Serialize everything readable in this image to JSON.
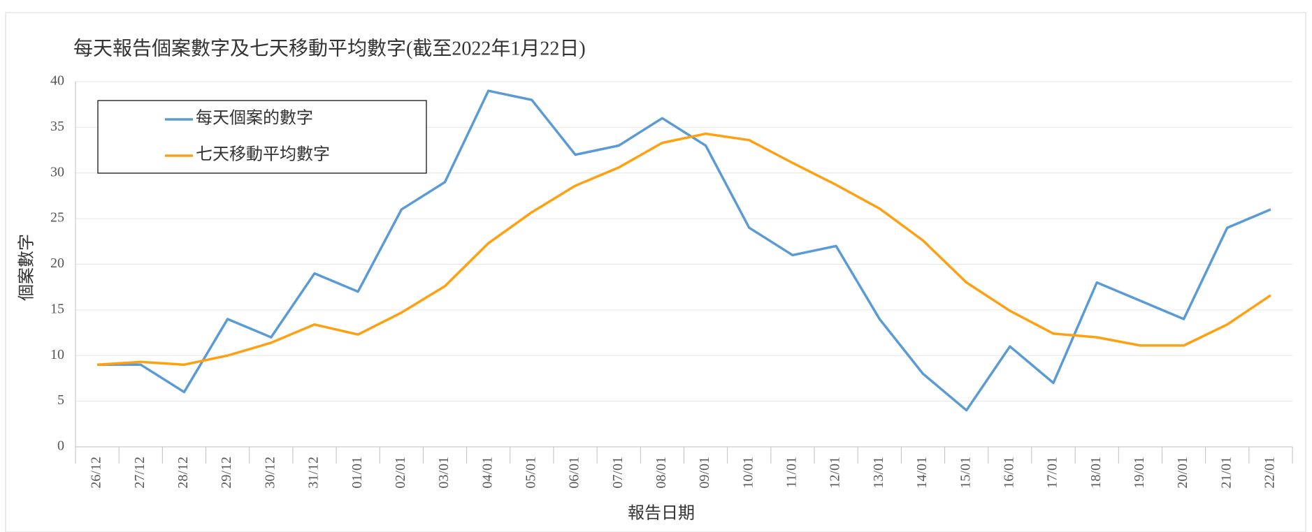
{
  "chart_data": {
    "type": "line",
    "title": "每天報告個案數字及七天移動平均數字(截至2022年1月22日)",
    "x_label": "報告日期",
    "y_label": "個案數字",
    "categories": [
      "26/12",
      "27/12",
      "28/12",
      "29/12",
      "30/12",
      "31/12",
      "01/01",
      "02/01",
      "03/01",
      "04/01",
      "05/01",
      "06/01",
      "07/01",
      "08/01",
      "09/01",
      "10/01",
      "11/01",
      "12/01",
      "13/01",
      "14/01",
      "15/01",
      "16/01",
      "17/01",
      "18/01",
      "19/01",
      "20/01",
      "21/01",
      "22/01"
    ],
    "series": [
      {
        "name": "每天個案的數字",
        "color": "#5b9bd5",
        "values": [
          9,
          9,
          6,
          14,
          12,
          19,
          17,
          26,
          29,
          39,
          38,
          32,
          33,
          36,
          33,
          24,
          21,
          22,
          14,
          8,
          4,
          11,
          7,
          18,
          16,
          14,
          24,
          26
        ]
      },
      {
        "name": "七天移動平均數字",
        "color": "#ffa010",
        "values": [
          9,
          9.3,
          9,
          10,
          11.4,
          13.4,
          12.3,
          14.7,
          17.6,
          22.3,
          25.7,
          28.6,
          30.6,
          33.3,
          34.3,
          33.6,
          31.1,
          28.7,
          26.1,
          22.6,
          18,
          14.9,
          12.4,
          12,
          11.1,
          11.1,
          13.4,
          16.6
        ]
      }
    ],
    "ylim": [
      0,
      40
    ],
    "yticks": [
      0,
      5,
      10,
      15,
      20,
      25,
      30,
      35,
      40
    ],
    "grid": true,
    "legend": "upper-left"
  }
}
